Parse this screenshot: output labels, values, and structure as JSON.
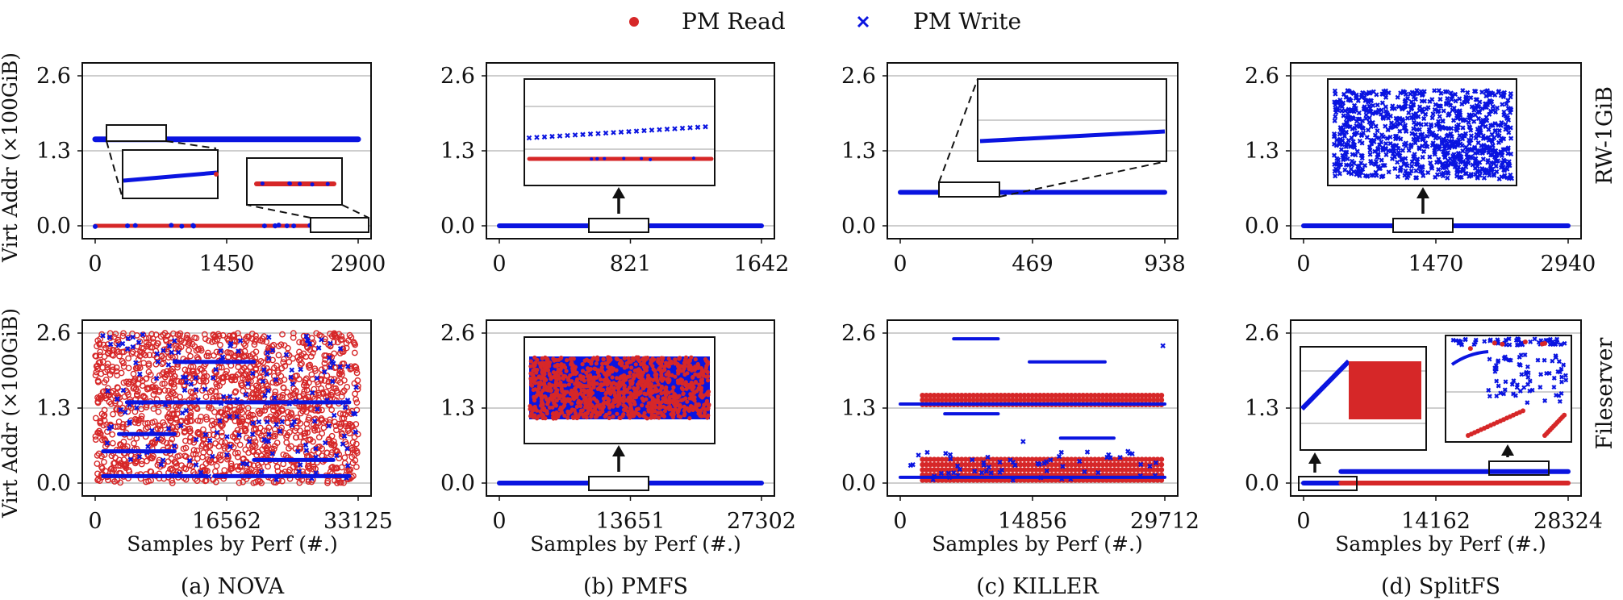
{
  "legend": [
    {
      "name": "PM Read",
      "color": "#d62728",
      "marker": "circle"
    },
    {
      "name": "PM Write",
      "color": "#0a14e0",
      "marker": "x"
    }
  ],
  "row_labels": [
    "RW-1GiB",
    "Fileserver"
  ],
  "ylabel": "Virt Addr (×100GiB)",
  "xlabel": "Samples by Perf (#.)",
  "captions": [
    "(a) NOVA",
    "(b) PMFS",
    "(c) KILLER",
    "(d) SplitFS"
  ],
  "chart_data": [
    {
      "type": "scatter",
      "fs": "NOVA",
      "workload": "RW-1GiB",
      "xlim": [
        0,
        2900
      ],
      "ylim": [
        0,
        2.6
      ],
      "x_ticks": [
        "0",
        "1450",
        "2900"
      ],
      "y_ticks": [
        "0.0",
        "1.3",
        "2.6"
      ],
      "series": [
        {
          "name": "PM Read",
          "segments": [
            {
              "x0": 0,
              "x1": 2900,
              "y": 0.0
            }
          ]
        },
        {
          "name": "PM Write",
          "segments": [
            {
              "x0": 0,
              "x1": 2900,
              "y": 1.5
            }
          ],
          "points_along": {
            "y": 0.0
          }
        }
      ]
    },
    {
      "type": "scatter",
      "fs": "PMFS",
      "workload": "RW-1GiB",
      "xlim": [
        0,
        1642
      ],
      "ylim": [
        0,
        2.6
      ],
      "x_ticks": [
        "0",
        "821",
        "1642"
      ],
      "y_ticks": [
        "0.0",
        "1.3",
        "2.6"
      ],
      "series": [
        {
          "name": "PM Write",
          "segments": [
            {
              "x0": 0,
              "x1": 1642,
              "y": 0.0
            }
          ]
        }
      ]
    },
    {
      "type": "scatter",
      "fs": "KILLER",
      "workload": "RW-1GiB",
      "xlim": [
        0,
        938
      ],
      "ylim": [
        0,
        2.6
      ],
      "x_ticks": [
        "0",
        "469",
        "938"
      ],
      "y_ticks": [
        "0.0",
        "1.3",
        "2.6"
      ],
      "series": [
        {
          "name": "PM Write",
          "segments": [
            {
              "x0": 0,
              "x1": 938,
              "y": 0.58
            }
          ]
        }
      ]
    },
    {
      "type": "scatter",
      "fs": "SplitFS",
      "workload": "RW-1GiB",
      "xlim": [
        0,
        2940
      ],
      "ylim": [
        0,
        2.6
      ],
      "x_ticks": [
        "0",
        "1470",
        "2940"
      ],
      "y_ticks": [
        "0.0",
        "1.3",
        "2.6"
      ],
      "series": [
        {
          "name": "PM Write",
          "segments": [
            {
              "x0": 0,
              "x1": 2940,
              "y": 0.0
            }
          ]
        }
      ]
    },
    {
      "type": "scatter",
      "fs": "NOVA",
      "workload": "Fileserver",
      "xlim": [
        0,
        33125
      ],
      "ylim": [
        0,
        2.6
      ],
      "x_ticks": [
        "0",
        "16562",
        "33125"
      ],
      "y_ticks": [
        "0.0",
        "1.3",
        "2.6"
      ],
      "series": [
        {
          "name": "PM Read",
          "distribution": "dense scatter over y 0.0-2.6"
        },
        {
          "name": "PM Write",
          "segments": [
            {
              "x0": 1000,
              "x1": 10000,
              "y": 0.55
            },
            {
              "x0": 1000,
              "x1": 14000,
              "y": 0.12
            },
            {
              "x0": 15000,
              "x1": 32000,
              "y": 0.12
            },
            {
              "x0": 4000,
              "x1": 16000,
              "y": 1.4
            },
            {
              "x0": 16500,
              "x1": 32000,
              "y": 1.4
            },
            {
              "x0": 10000,
              "x1": 20000,
              "y": 2.1
            },
            {
              "x0": 3000,
              "x1": 10000,
              "y": 0.85
            },
            {
              "x0": 20000,
              "x1": 30000,
              "y": 0.4
            }
          ]
        }
      ]
    },
    {
      "type": "scatter",
      "fs": "PMFS",
      "workload": "Fileserver",
      "xlim": [
        0,
        27302
      ],
      "ylim": [
        0,
        2.6
      ],
      "x_ticks": [
        "0",
        "13651",
        "27302"
      ],
      "y_ticks": [
        "0.0",
        "1.3",
        "2.6"
      ],
      "series": [
        {
          "name": "PM Write",
          "segments": [
            {
              "x0": 0,
              "x1": 27302,
              "y": 0.0
            }
          ]
        }
      ]
    },
    {
      "type": "scatter",
      "fs": "KILLER",
      "workload": "Fileserver",
      "xlim": [
        0,
        29712
      ],
      "ylim": [
        0,
        2.6
      ],
      "x_ticks": [
        "0",
        "14856",
        "29712"
      ],
      "y_ticks": [
        "0.0",
        "1.3",
        "2.6"
      ],
      "series": [
        {
          "name": "PM Read",
          "bands": [
            {
              "x0": 2500,
              "x1": 29712,
              "y": [
                1.35,
                1.5
              ]
            },
            {
              "x0": 2500,
              "x1": 29712,
              "y": [
                0.05,
                0.45
              ]
            }
          ]
        },
        {
          "name": "PM Write",
          "segments": [
            {
              "x0": 6000,
              "x1": 11000,
              "y": 2.5
            },
            {
              "x0": 14500,
              "x1": 23000,
              "y": 2.1
            },
            {
              "x0": 5000,
              "x1": 11000,
              "y": 1.2
            },
            {
              "x0": 18000,
              "x1": 24000,
              "y": 0.78
            },
            {
              "x0": 0,
              "x1": 29712,
              "y": 1.37
            },
            {
              "x0": 0,
              "x1": 29712,
              "y": 0.1
            }
          ]
        }
      ]
    },
    {
      "type": "scatter",
      "fs": "SplitFS",
      "workload": "Fileserver",
      "xlim": [
        0,
        28324
      ],
      "ylim": [
        0,
        2.6
      ],
      "x_ticks": [
        "0",
        "14162",
        "28324"
      ],
      "y_ticks": [
        "0.0",
        "1.3",
        "2.6"
      ],
      "series": [
        {
          "name": "PM Read",
          "segments": [
            {
              "x0": 4000,
              "x1": 28324,
              "y": 0.0
            }
          ]
        },
        {
          "name": "PM Write",
          "segments": [
            {
              "x0": 0,
              "x1": 4000,
              "y": 0.0
            },
            {
              "x0": 4000,
              "x1": 28324,
              "y": 0.2
            }
          ]
        }
      ]
    }
  ]
}
